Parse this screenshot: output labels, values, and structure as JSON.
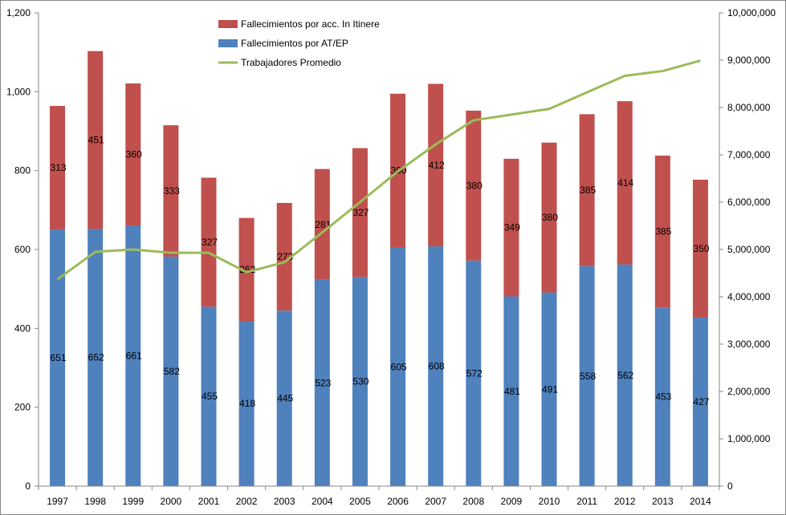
{
  "chart_data": {
    "type": "bar",
    "stacked": true,
    "categories": [
      "1997",
      "1998",
      "1999",
      "2000",
      "2001",
      "2002",
      "2003",
      "2004",
      "2005",
      "2006",
      "2007",
      "2008",
      "2009",
      "2010",
      "2011",
      "2012",
      "2013",
      "2014"
    ],
    "series": [
      {
        "name": "Fallecimientos por AT/EP",
        "type": "bar",
        "axis": "left",
        "color": "#4f81bd",
        "values": [
          651,
          652,
          661,
          582,
          455,
          418,
          445,
          523,
          530,
          605,
          608,
          572,
          481,
          491,
          558,
          562,
          453,
          427
        ]
      },
      {
        "name": "Fallecimientos por acc. In Itinere",
        "type": "bar",
        "axis": "left",
        "color": "#c0504d",
        "values": [
          313,
          451,
          360,
          333,
          327,
          262,
          273,
          281,
          327,
          390,
          412,
          380,
          349,
          380,
          385,
          414,
          385,
          350
        ]
      },
      {
        "name": "Trabajadores Promedio",
        "type": "line",
        "axis": "right",
        "color": "#9bbb59",
        "values": [
          4370000,
          4950000,
          5000000,
          4930000,
          4930000,
          4520000,
          4730000,
          5360000,
          6000000,
          6650000,
          7220000,
          7730000,
          7850000,
          7970000,
          8320000,
          8670000,
          8770000,
          8990000
        ]
      }
    ],
    "legend_order": [
      "Fallecimientos por acc. In Itinere",
      "Fallecimientos por AT/EP",
      "Trabajadores Promedio"
    ],
    "legend_position": "top-center",
    "y_left": {
      "min": 0,
      "max": 1200,
      "ticks": [
        0,
        200,
        400,
        600,
        800,
        1000,
        1200
      ],
      "tick_labels": [
        "0",
        "200",
        "400",
        "600",
        "800",
        "1,000",
        "1,200"
      ]
    },
    "y_right": {
      "min": 0,
      "max": 10000000,
      "ticks": [
        0,
        1000000,
        2000000,
        3000000,
        4000000,
        5000000,
        6000000,
        7000000,
        8000000,
        9000000,
        10000000
      ],
      "tick_labels": [
        "0",
        "1,000,000",
        "2,000,000",
        "3,000,000",
        "4,000,000",
        "5,000,000",
        "6,000,000",
        "7,000,000",
        "8,000,000",
        "9,000,000",
        "10,000,000"
      ]
    },
    "grid": false
  }
}
